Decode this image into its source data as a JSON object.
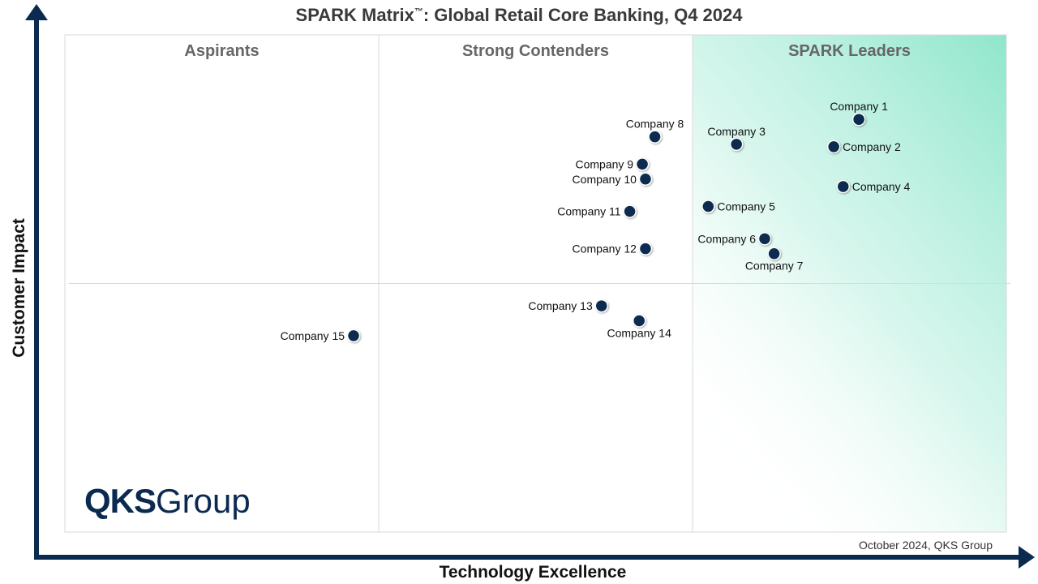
{
  "title": {
    "main": "SPARK Matrix",
    "tm": "™",
    "rest": ": Global Retail Core Banking, Q4 2024"
  },
  "footer_note": "October 2024, QKS Group",
  "logo": {
    "part1": "QKS",
    "part2": "Group"
  },
  "colors": {
    "axis": "#0b2a4f",
    "point": "#0b2a4f",
    "leader_gradient": "#8fe6cc",
    "quadrant_label": "#666666"
  },
  "chart_data": {
    "type": "scatter",
    "title": "SPARK Matrix™: Global Retail Core Banking, Q4 2024",
    "xlabel": "Technology Excellence",
    "ylabel": "Customer Impact",
    "xlim": [
      0,
      3
    ],
    "ylim": [
      0,
      2
    ],
    "grid": true,
    "quadrants": [
      "Aspirants",
      "Strong Contenders",
      "SPARK Leaders"
    ],
    "points": [
      {
        "name": "Company 1",
        "x": 2.53,
        "y": 1.66,
        "label_pos": "above"
      },
      {
        "name": "Company 2",
        "x": 2.45,
        "y": 1.55,
        "label_pos": "right"
      },
      {
        "name": "Company 3",
        "x": 2.14,
        "y": 1.56,
        "label_pos": "above"
      },
      {
        "name": "Company 4",
        "x": 2.48,
        "y": 1.39,
        "label_pos": "right"
      },
      {
        "name": "Company 5",
        "x": 2.05,
        "y": 1.31,
        "label_pos": "right"
      },
      {
        "name": "Company 6",
        "x": 2.23,
        "y": 1.18,
        "label_pos": "left"
      },
      {
        "name": "Company 7",
        "x": 2.26,
        "y": 1.12,
        "label_pos": "below"
      },
      {
        "name": "Company 8",
        "x": 1.88,
        "y": 1.59,
        "label_pos": "above"
      },
      {
        "name": "Company 9",
        "x": 1.84,
        "y": 1.48,
        "label_pos": "left"
      },
      {
        "name": "Company 10",
        "x": 1.85,
        "y": 1.42,
        "label_pos": "left"
      },
      {
        "name": "Company 11",
        "x": 1.8,
        "y": 1.29,
        "label_pos": "left"
      },
      {
        "name": "Company 12",
        "x": 1.85,
        "y": 1.14,
        "label_pos": "left"
      },
      {
        "name": "Company 13",
        "x": 1.71,
        "y": 0.91,
        "label_pos": "left"
      },
      {
        "name": "Company 14",
        "x": 1.83,
        "y": 0.85,
        "label_pos": "below"
      },
      {
        "name": "Company 15",
        "x": 0.92,
        "y": 0.79,
        "label_pos": "left"
      }
    ]
  }
}
